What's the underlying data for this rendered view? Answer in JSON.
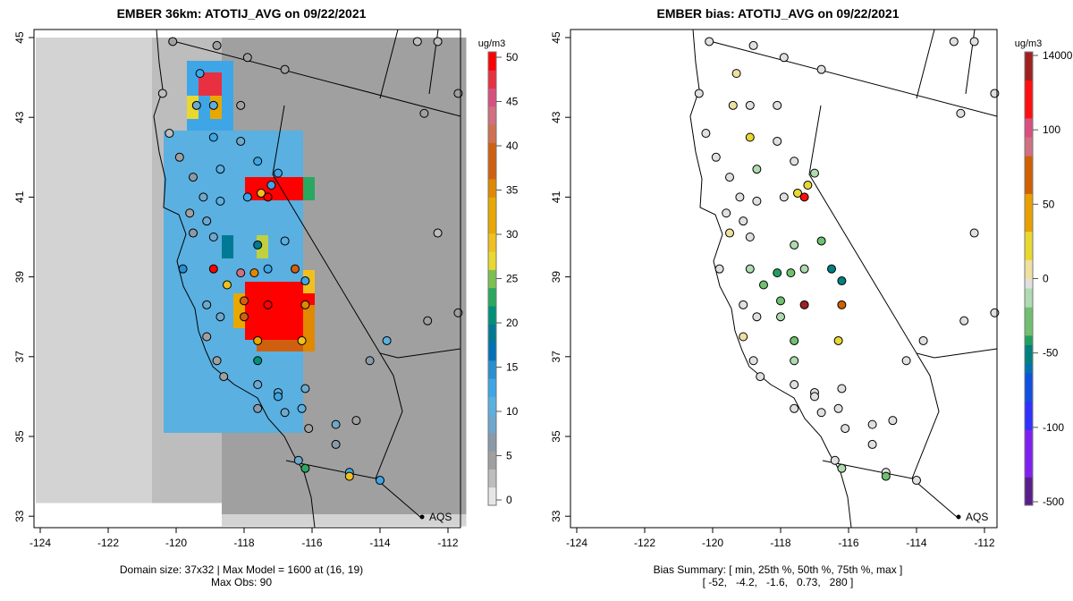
{
  "left": {
    "title": "EMBER 36km: ATOTIJ_AVG on 09/22/2021",
    "unit": "ug/m3",
    "colorbar_ticks": [
      "0",
      "5",
      "10",
      "15",
      "20",
      "25",
      "30",
      "35",
      "40",
      "45",
      "50"
    ],
    "footer_line1": "Domain size: 37x32 | Max Model = 1600 at (16, 19)",
    "footer_line2": "Max Obs: 90",
    "legend_label": "AQS"
  },
  "right": {
    "title": "EMBER bias: ATOTIJ_AVG on 09/22/2021",
    "unit": "ug/m3",
    "colorbar_ticks": [
      "-500",
      "-100",
      "-50",
      "0",
      "50",
      "100",
      "14000"
    ],
    "footer_line1": "Bias Summary: [ min, 25th %, 50th %, 75th %, max ]",
    "footer_line2": "[ -52,   -4.2,   -1.6,   0.73,   280 ]",
    "legend_label": "AQS"
  },
  "axes": {
    "x_ticks": [
      "-124",
      "-122",
      "-120",
      "-118",
      "-116",
      "-114",
      "-112"
    ],
    "y_ticks": [
      "33",
      "35",
      "37",
      "39",
      "41",
      "43",
      "45"
    ]
  },
  "chart_data": {
    "type": "heatmap",
    "xlim": [
      -124.2,
      -111.5
    ],
    "ylim": [
      33,
      45.2
    ],
    "model_zones": [
      {
        "lon": [
          -124.2,
          -120.6
        ],
        "lat": [
          33,
          45.2
        ],
        "value": 1
      },
      {
        "lon": [
          -120.6,
          -118.5
        ],
        "lat": [
          33,
          45.2
        ],
        "value": 3
      },
      {
        "lon": [
          -118.5,
          -111.5
        ],
        "lat": [
          33,
          45.2
        ],
        "value": 5
      }
    ],
    "model_hotspots": [
      {
        "lon": [
          -120.2,
          -116.2
        ],
        "lat": [
          35.0,
          42.8
        ],
        "value": 11
      },
      {
        "lon": [
          -119.6,
          -118.2
        ],
        "lat": [
          42.8,
          44.4
        ],
        "value": 12
      },
      {
        "lon": [
          -119.3,
          -118.6
        ],
        "lat": [
          43.4,
          44.0
        ],
        "value": 49
      },
      {
        "lon": [
          -119.6,
          -119.3
        ],
        "lat": [
          43.0,
          43.4
        ],
        "value": 28
      },
      {
        "lon": [
          -119.0,
          -118.6
        ],
        "lat": [
          43.0,
          43.4
        ],
        "value": 34
      },
      {
        "lon": [
          -118.0,
          -116.0
        ],
        "lat": [
          40.8,
          41.4
        ],
        "value": 50
      },
      {
        "lon": [
          -116.4,
          -115.9
        ],
        "lat": [
          40.8,
          41.4
        ],
        "value": 22
      },
      {
        "lon": [
          -118.6,
          -118.2
        ],
        "lat": [
          39.6,
          40.1
        ],
        "value": 18
      },
      {
        "lon": [
          -117.7,
          -117.3
        ],
        "lat": [
          39.6,
          40.1
        ],
        "value": 27
      },
      {
        "lon": [
          -117.9,
          -116.0
        ],
        "lat": [
          37.5,
          38.9
        ],
        "value": 50
      },
      {
        "lon": [
          -116.3,
          -115.9
        ],
        "lat": [
          38.6,
          39.1
        ],
        "value": 31
      },
      {
        "lon": [
          -117.8,
          -116.3
        ],
        "lat": [
          37.2,
          37.5
        ],
        "value": 38
      },
      {
        "lon": [
          -116.3,
          -115.9
        ],
        "lat": [
          37.2,
          38.3
        ],
        "value": 36
      },
      {
        "lon": [
          -118.3,
          -117.9
        ],
        "lat": [
          37.7,
          38.6
        ],
        "value": 33
      }
    ],
    "sites": [
      {
        "lon": -120.1,
        "lat": 44.9,
        "obs": 5,
        "bias": -2
      },
      {
        "lon": -118.8,
        "lat": 44.8,
        "obs": 4,
        "bias": -1
      },
      {
        "lon": -117.9,
        "lat": 44.5,
        "obs": 5,
        "bias": -2
      },
      {
        "lon": -116.8,
        "lat": 44.2,
        "obs": 5,
        "bias": -1
      },
      {
        "lon": -112.9,
        "lat": 44.9,
        "obs": 3,
        "bias": 0
      },
      {
        "lon": -112.3,
        "lat": 44.9,
        "obs": 3,
        "bias": 0
      },
      {
        "lon": -120.4,
        "lat": 43.6,
        "obs": 3,
        "bias": -1
      },
      {
        "lon": -119.3,
        "lat": 44.1,
        "obs": 12,
        "bias": 5
      },
      {
        "lon": -119.4,
        "lat": 43.3,
        "obs": 8,
        "bias": 10
      },
      {
        "lon": -118.9,
        "lat": 43.3,
        "obs": 10,
        "bias": -3
      },
      {
        "lon": -118.1,
        "lat": 43.3,
        "obs": 5,
        "bias": 0
      },
      {
        "lon": -112.7,
        "lat": 43.1,
        "obs": 5,
        "bias": -2
      },
      {
        "lon": -111.7,
        "lat": 43.6,
        "obs": 4,
        "bias": -1
      },
      {
        "lon": -120.2,
        "lat": 42.6,
        "obs": 3,
        "bias": -4
      },
      {
        "lon": -118.9,
        "lat": 42.5,
        "obs": 12,
        "bias": 20
      },
      {
        "lon": -118.1,
        "lat": 42.4,
        "obs": 8,
        "bias": -5
      },
      {
        "lon": -119.9,
        "lat": 42.0,
        "obs": 4,
        "bias": -6
      },
      {
        "lon": -118.7,
        "lat": 41.7,
        "obs": 11,
        "bias": -8
      },
      {
        "lon": -117.6,
        "lat": 41.9,
        "obs": 12,
        "bias": -3
      },
      {
        "lon": -117.2,
        "lat": 41.3,
        "obs": 13,
        "bias": 15
      },
      {
        "lon": -117.5,
        "lat": 41.1,
        "obs": 30,
        "bias": 25
      },
      {
        "lon": -117.0,
        "lat": 41.6,
        "obs": 12,
        "bias": -10
      },
      {
        "lon": -119.5,
        "lat": 41.5,
        "obs": 6,
        "bias": -4
      },
      {
        "lon": -119.2,
        "lat": 41.0,
        "obs": 8,
        "bias": -6
      },
      {
        "lon": -118.7,
        "lat": 40.9,
        "obs": 10,
        "bias": -5
      },
      {
        "lon": -117.9,
        "lat": 41.0,
        "obs": 13,
        "bias": -3
      },
      {
        "lon": -117.3,
        "lat": 41.0,
        "obs": 50,
        "bias": 115
      },
      {
        "lon": -119.6,
        "lat": 40.6,
        "obs": 5,
        "bias": -1
      },
      {
        "lon": -119.1,
        "lat": 40.4,
        "obs": 9,
        "bias": -2
      },
      {
        "lon": -119.5,
        "lat": 40.1,
        "obs": 6,
        "bias": 5
      },
      {
        "lon": -118.9,
        "lat": 40.0,
        "obs": 9,
        "bias": -3
      },
      {
        "lon": -117.6,
        "lat": 39.8,
        "obs": 18,
        "bias": -15
      },
      {
        "lon": -116.8,
        "lat": 39.9,
        "obs": 10,
        "bias": -20
      },
      {
        "lon": -112.3,
        "lat": 40.1,
        "obs": 3,
        "bias": -1
      },
      {
        "lon": -119.8,
        "lat": 39.2,
        "obs": 14,
        "bias": -2
      },
      {
        "lon": -118.9,
        "lat": 39.2,
        "obs": 50,
        "bias": -8
      },
      {
        "lon": -118.1,
        "lat": 39.1,
        "obs": 45,
        "bias": -40
      },
      {
        "lon": -117.7,
        "lat": 39.1,
        "obs": 36,
        "bias": -25
      },
      {
        "lon": -117.3,
        "lat": 39.2,
        "obs": 12,
        "bias": -15
      },
      {
        "lon": -116.5,
        "lat": 39.2,
        "obs": 40,
        "bias": -45
      },
      {
        "lon": -116.2,
        "lat": 38.9,
        "obs": 12,
        "bias": -50
      },
      {
        "lon": -118.5,
        "lat": 38.8,
        "obs": 31,
        "bias": -20
      },
      {
        "lon": -118.0,
        "lat": 38.4,
        "obs": 38,
        "bias": -30
      },
      {
        "lon": -119.1,
        "lat": 38.3,
        "obs": 9,
        "bias": -5
      },
      {
        "lon": -117.3,
        "lat": 38.3,
        "obs": 50,
        "bias": 280
      },
      {
        "lon": -116.2,
        "lat": 38.3,
        "obs": 36,
        "bias": 60
      },
      {
        "lon": -118.7,
        "lat": 38.0,
        "obs": 8,
        "bias": -4
      },
      {
        "lon": -118.0,
        "lat": 38.0,
        "obs": 38,
        "bias": -10
      },
      {
        "lon": -119.1,
        "lat": 37.5,
        "obs": 5,
        "bias": 8
      },
      {
        "lon": -117.6,
        "lat": 37.4,
        "obs": 33,
        "bias": -20
      },
      {
        "lon": -116.3,
        "lat": 37.4,
        "obs": 31,
        "bias": 15
      },
      {
        "lon": -117.6,
        "lat": 36.9,
        "obs": 20,
        "bias": -15
      },
      {
        "lon": -118.8,
        "lat": 36.9,
        "obs": 5,
        "bias": -2
      },
      {
        "lon": -118.6,
        "lat": 36.5,
        "obs": 5,
        "bias": -1
      },
      {
        "lon": -117.6,
        "lat": 36.3,
        "obs": 8,
        "bias": -3
      },
      {
        "lon": -117.0,
        "lat": 36.1,
        "obs": 10,
        "bias": -4
      },
      {
        "lon": -116.2,
        "lat": 36.2,
        "obs": 9,
        "bias": -6
      },
      {
        "lon": -117.6,
        "lat": 35.7,
        "obs": 6,
        "bias": -2
      },
      {
        "lon": -116.8,
        "lat": 35.6,
        "obs": 9,
        "bias": -5
      },
      {
        "lon": -116.3,
        "lat": 35.7,
        "obs": 10,
        "bias": -2
      },
      {
        "lon": -117.0,
        "lat": 36.0,
        "obs": 12,
        "bias": -1
      },
      {
        "lon": -115.3,
        "lat": 35.3,
        "obs": 8,
        "bias": -2
      },
      {
        "lon": -116.1,
        "lat": 35.2,
        "obs": 5,
        "bias": 0
      },
      {
        "lon": -115.3,
        "lat": 34.8,
        "obs": 6,
        "bias": -1
      },
      {
        "lon": -116.4,
        "lat": 34.4,
        "obs": 8,
        "bias": -3
      },
      {
        "lon": -116.2,
        "lat": 34.2,
        "obs": 22,
        "bias": -8
      },
      {
        "lon": -114.9,
        "lat": 34.1,
        "obs": 12,
        "bias": -2
      },
      {
        "lon": -114.9,
        "lat": 34.0,
        "obs": 30,
        "bias": -20
      },
      {
        "lon": -114.0,
        "lat": 33.9,
        "obs": 12,
        "bias": -1
      },
      {
        "lon": -113.8,
        "lat": 37.4,
        "obs": 10,
        "bias": -2
      },
      {
        "lon": -112.6,
        "lat": 37.9,
        "obs": 4,
        "bias": -1
      },
      {
        "lon": -111.7,
        "lat": 38.1,
        "obs": 4,
        "bias": -1
      },
      {
        "lon": -114.7,
        "lat": 35.4,
        "obs": 5,
        "bias": -1
      },
      {
        "lon": -114.3,
        "lat": 36.9,
        "obs": 6,
        "bias": -2
      }
    ]
  }
}
